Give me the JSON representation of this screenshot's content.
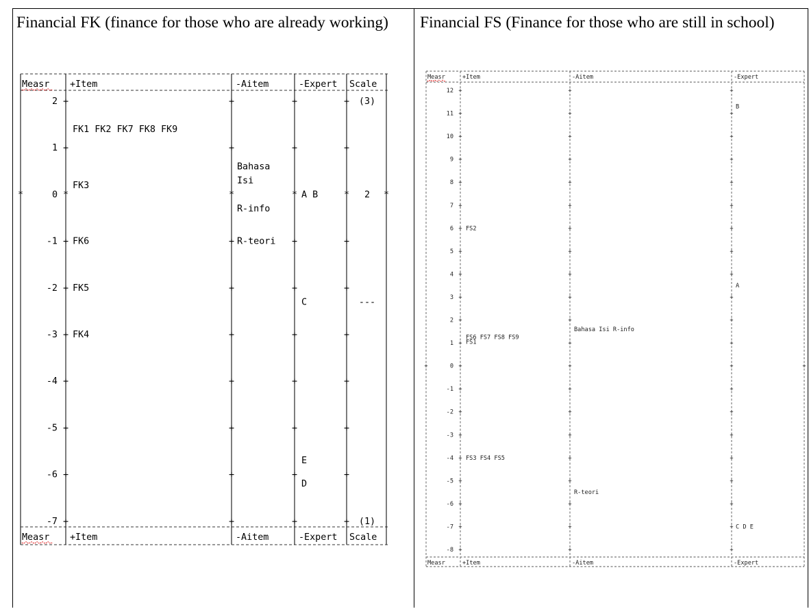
{
  "headings": {
    "fk": "Financial FK (finance for those who are already working)",
    "fs": "Financial FS (Finance for those who are still in school)"
  },
  "fk_map": {
    "columns": [
      "|Measr",
      "|+Item",
      "|-Aitem",
      "|-Expert",
      "|Scale|"
    ],
    "columns_text": [
      "Measr",
      "+Item",
      "|-Aitem",
      "|-Expert",
      "|Scale|"
    ],
    "ticks": [
      "2",
      "1",
      "0",
      "-1",
      "-2",
      "-3",
      "-4",
      "-5",
      "-6",
      "-7"
    ],
    "rows": [
      {
        "measure": 2,
        "items": "",
        "aitems": "",
        "experts": "",
        "scale": "(3)"
      },
      {
        "measure": 1.4,
        "items": "FK1  FK2  FK7  FK8  FK9",
        "aitems": "",
        "experts": "",
        "scale": ""
      },
      {
        "measure": 0.6,
        "items": "",
        "aitems": "Bahasa",
        "experts": "",
        "scale": ""
      },
      {
        "measure": 0.3,
        "items": "",
        "aitems": "Isi",
        "experts": "",
        "scale": ""
      },
      {
        "measure": 0.2,
        "items": "FK3",
        "aitems": "",
        "experts": "",
        "scale": ""
      },
      {
        "measure": 0,
        "items": "",
        "aitems": "",
        "experts": "A  B",
        "scale": "2"
      },
      {
        "measure": -0.3,
        "items": "",
        "aitems": "R-info",
        "experts": "",
        "scale": ""
      },
      {
        "measure": -1,
        "items": "FK6",
        "aitems": "R-teori",
        "experts": "",
        "scale": ""
      },
      {
        "measure": -2,
        "items": "FK5",
        "aitems": "",
        "experts": "",
        "scale": ""
      },
      {
        "measure": -2.3,
        "items": "",
        "aitems": "",
        "experts": "C",
        "scale": "---"
      },
      {
        "measure": -3,
        "items": "FK4",
        "aitems": "",
        "experts": "",
        "scale": ""
      },
      {
        "measure": -5.7,
        "items": "",
        "aitems": "",
        "experts": "E",
        "scale": ""
      },
      {
        "measure": -6.2,
        "items": "",
        "aitems": "",
        "experts": "D",
        "scale": ""
      },
      {
        "measure": -7,
        "items": "",
        "aitems": "",
        "experts": "",
        "scale": "(1)"
      }
    ]
  },
  "fs_map": {
    "columns": [
      "|Measr",
      "|+Item",
      "|-Aitem",
      "|-Expert"
    ],
    "ticks": [
      "12",
      "11",
      "10",
      "9",
      "8",
      "7",
      "6",
      "5",
      "4",
      "3",
      "2",
      "1",
      "0",
      "-1",
      "-2",
      "-3",
      "-4",
      "-5",
      "-6",
      "-7",
      "-8"
    ],
    "rows": [
      {
        "measure": 11.3,
        "items": "",
        "aitems": "",
        "experts": "B"
      },
      {
        "measure": 6,
        "items": "FS2",
        "aitems": "",
        "experts": ""
      },
      {
        "measure": 3.5,
        "items": "",
        "aitems": "",
        "experts": "A"
      },
      {
        "measure": 1.6,
        "items": "",
        "aitems": "Bahasa    Isi       R-info",
        "experts": ""
      },
      {
        "measure": 1.25,
        "items": "FS6  FS7  FS8  FS9",
        "aitems": "",
        "experts": ""
      },
      {
        "measure": 1.05,
        "items": "FS1",
        "aitems": "",
        "experts": ""
      },
      {
        "measure": -4,
        "items": "FS3  FS4  FS5",
        "aitems": "",
        "experts": ""
      },
      {
        "measure": -5.5,
        "items": "",
        "aitems": "R-teori",
        "experts": ""
      },
      {
        "measure": -7,
        "items": "",
        "aitems": "",
        "experts": "C  D  E"
      }
    ]
  }
}
